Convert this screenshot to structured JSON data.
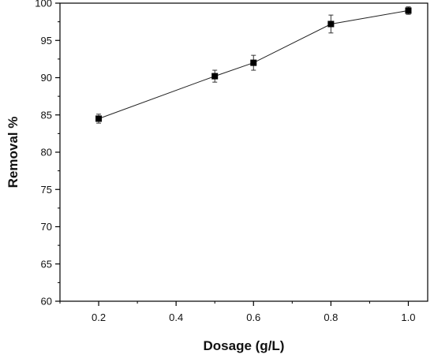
{
  "chart_data": {
    "type": "line",
    "title": "",
    "xlabel": "Dosage (g/L)",
    "ylabel": "Removal %",
    "xlim": [
      0.1,
      1.05
    ],
    "ylim": [
      60,
      100
    ],
    "xticks": [
      "0.2",
      "0.4",
      "0.6",
      "0.8",
      "1.0"
    ],
    "yticks": [
      "60",
      "65",
      "70",
      "75",
      "80",
      "85",
      "90",
      "95",
      "100"
    ],
    "grid": false,
    "legend": "none",
    "marker": "square",
    "color": "#000000",
    "series": [
      {
        "x": [
          0.2,
          0.5,
          0.6,
          0.8,
          1.0
        ],
        "y": [
          84.5,
          90.2,
          92.0,
          97.2,
          99.0
        ],
        "error": [
          0.6,
          0.8,
          1.0,
          1.2,
          0.5
        ]
      }
    ]
  }
}
